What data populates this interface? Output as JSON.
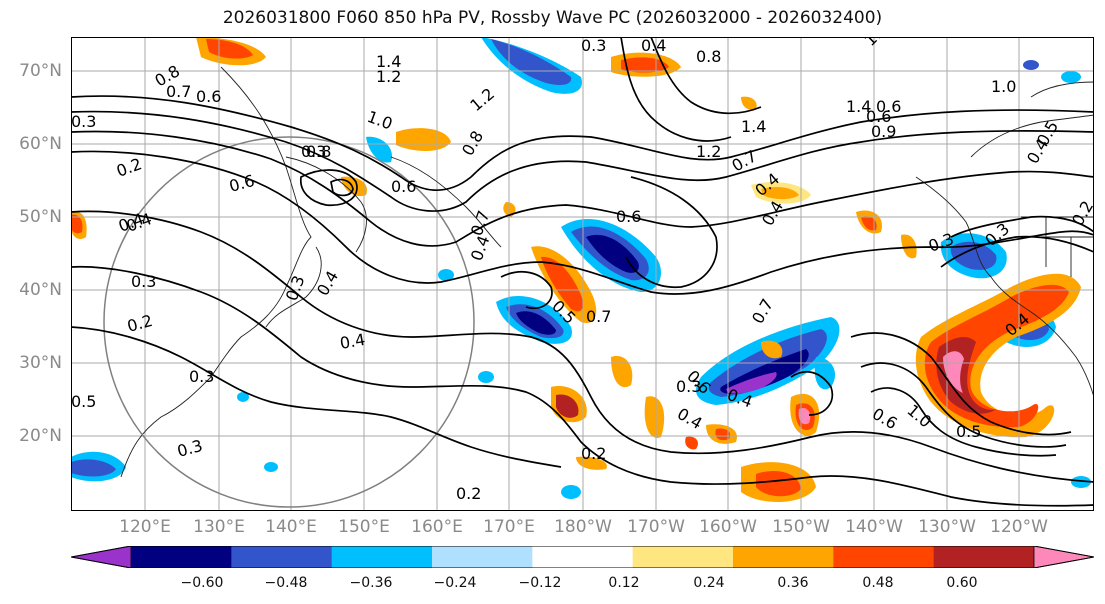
{
  "title": "2026031800 F060 850 hPa PV, Rossby Wave PC (2026032000 - 2026032400)",
  "lat_labels": [
    "70°N",
    "60°N",
    "50°N",
    "40°N",
    "30°N",
    "20°N"
  ],
  "lon_labels": [
    "120°E",
    "130°E",
    "140°E",
    "150°E",
    "160°E",
    "170°E",
    "180°W",
    "170°W",
    "160°W",
    "150°W",
    "140°W",
    "130°W",
    "120°W"
  ],
  "colorbar": {
    "ticks": [
      "−0.60",
      "−0.48",
      "−0.36",
      "−0.24",
      "−0.12",
      "0.12",
      "0.24",
      "0.36",
      "0.48",
      "0.60"
    ],
    "colors": [
      "#9933cc",
      "#000080",
      "#3355cc",
      "#00bfff",
      "#b0e0ff",
      "#ffffff",
      "#ffe680",
      "#ffa500",
      "#ff4500",
      "#b22222",
      "#ff88bb"
    ]
  },
  "contour_labels": [
    "0.3",
    "0.4",
    "1.4",
    "0.8",
    "1.2",
    "1.0",
    "0.3",
    "0.4",
    "0.8",
    "0.7",
    "0.6",
    "0.3",
    "1.0",
    "1.4",
    "1.2",
    "0.9",
    "0.6",
    "1.0",
    "1.4",
    "0.8",
    "1.2",
    "0.2",
    "0.8",
    "0.6",
    "0.4",
    "0.6",
    "0.5",
    "0.7",
    "0.4",
    "0.3",
    "0.2",
    "0.7",
    "0.3",
    "0.3",
    "0.2",
    "0.4",
    "0.5",
    "0.6",
    "0.4",
    "0.3",
    "0.2",
    "0.7",
    "0.3",
    "0.2",
    "0.4",
    "0.5",
    "0.3",
    "0.4",
    "0.6",
    "0.4",
    "0.3",
    "0.4",
    "0.6",
    "0.5",
    "1.0",
    "0.4",
    "0.6",
    "0.7",
    "0.4"
  ]
}
